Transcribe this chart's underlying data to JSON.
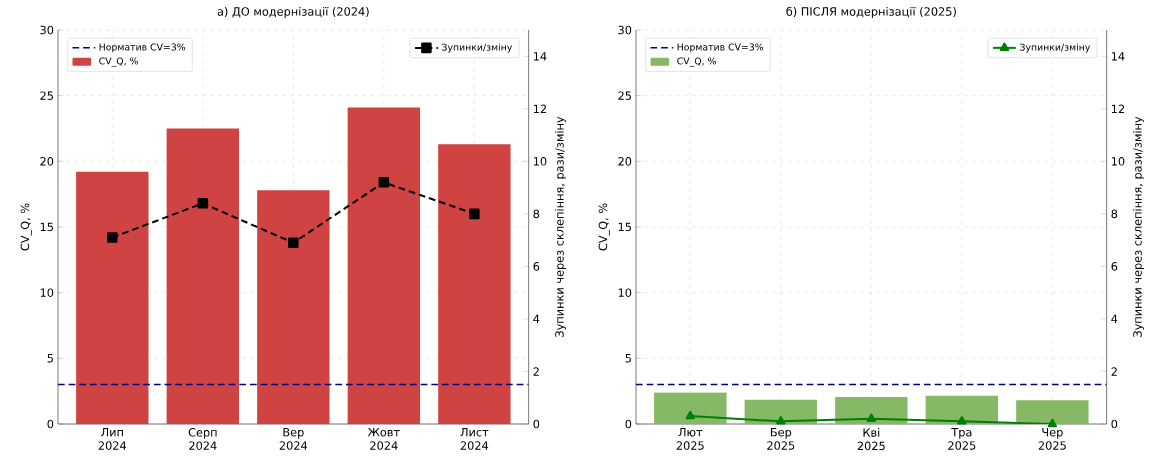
{
  "chart_data": [
    {
      "type": "bar",
      "title": "а) ДО модернізації (2024)",
      "categories": [
        "Лип 2024",
        "Серп 2024",
        "Вер 2024",
        "Жовт 2024",
        "Лист 2024"
      ],
      "ylabel": "CV_Q, %",
      "y2label": "Зупинки через склепіння, рази/зміну",
      "ylim": [
        0,
        30
      ],
      "yticks": [
        0,
        5,
        10,
        15,
        20,
        25,
        30
      ],
      "y2lim": [
        0,
        15
      ],
      "y2ticks": [
        0,
        2,
        4,
        6,
        8,
        10,
        12,
        14
      ],
      "grid": true,
      "legend": "top left",
      "series": [
        {
          "name": "CV_Q, %",
          "color": "#cf4343",
          "values": [
            19.2,
            22.5,
            17.8,
            24.1,
            21.3
          ]
        },
        {
          "type": "line",
          "axis": "y2",
          "name": "Зупинки/зміну",
          "color": "#000000",
          "marker": "square",
          "line_style": "dashed",
          "values": [
            7.1,
            8.4,
            6.9,
            9.2,
            8.0
          ]
        }
      ],
      "ref_lines": [
        {
          "axis": "y",
          "value": 3,
          "label": "Норматив CV=3%",
          "color": "#000080",
          "line_style": "dashed"
        }
      ]
    },
    {
      "type": "bar",
      "title": "б) ПІСЛЯ модернізації (2025)",
      "categories": [
        "Лют 2025",
        "Бер 2025",
        "Кві 2025",
        "Тра 2025",
        "Чер 2025"
      ],
      "ylabel": "CV_Q, %",
      "y2label": "Зупинки через склепіння, рази/зміну",
      "ylim": [
        0,
        30
      ],
      "yticks": [
        0,
        5,
        10,
        15,
        20,
        25,
        30
      ],
      "y2lim": [
        0,
        15
      ],
      "y2ticks": [
        0,
        2,
        4,
        6,
        8,
        10,
        12,
        14
      ],
      "grid": true,
      "legend": "top left",
      "series": [
        {
          "name": "CV_Q, %",
          "color": "#86b966",
          "values": [
            2.4,
            1.85,
            2.05,
            2.15,
            1.8
          ]
        },
        {
          "type": "line",
          "axis": "y2",
          "name": "Зупинки/зміну",
          "color": "#008000",
          "marker": "triangle",
          "line_style": "solid",
          "values": [
            0.3,
            0.1,
            0.2,
            0.1,
            0.0
          ]
        }
      ],
      "ref_lines": [
        {
          "axis": "y",
          "value": 3,
          "label": "Норматив CV=3%",
          "color": "#000080",
          "line_style": "dashed"
        }
      ]
    }
  ]
}
